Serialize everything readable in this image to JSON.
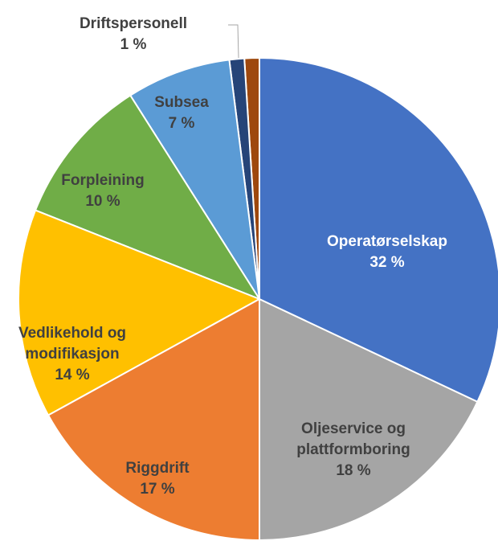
{
  "chart_data": {
    "type": "pie",
    "categories": [
      "Operatørselskap",
      "Oljeservice og plattformboring",
      "Riggdrift",
      "Vedlikehold og modifikasjon",
      "Forpleining",
      "Subsea",
      "Driftspersonell",
      null
    ],
    "values": [
      32,
      18,
      17,
      14,
      10,
      7,
      1,
      1
    ],
    "value_labels": [
      "32 %",
      "18 %",
      "17 %",
      "14 %",
      "10 %",
      "7 %",
      "1 %",
      null
    ],
    "colors": [
      "#4472c4",
      "#a5a5a5",
      "#ed7d31",
      "#ffc000",
      "#70ad47",
      "#5b9bd5",
      "#264478",
      "#9e480e"
    ]
  }
}
